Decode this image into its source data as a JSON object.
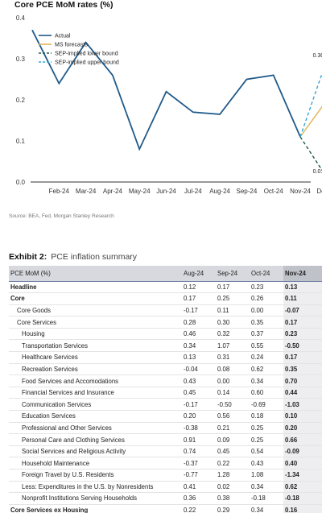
{
  "chart_data": {
    "type": "line",
    "title": "Core PCE MoM rates (%)",
    "categories": [
      "Feb-24",
      "Mar-24",
      "Apr-24",
      "May-24",
      "Jun-24",
      "Jul-24",
      "Aug-24",
      "Sep-24",
      "Oct-24",
      "Nov-24",
      "Dec-24"
    ],
    "ylim": [
      0.0,
      0.4
    ],
    "yticks": [
      "0.0",
      "0.1",
      "0.2",
      "0.3",
      "0.4"
    ],
    "grid": false,
    "legend_position": "top-left",
    "actual_x": [
      "Jan-24",
      "Feb-24",
      "Mar-24",
      "Apr-24",
      "May-24",
      "Jun-24",
      "Jul-24",
      "Aug-24",
      "Sep-24",
      "Oct-24",
      "Nov-24"
    ],
    "series": [
      {
        "name": "Actual",
        "color": "#1f5a8a",
        "style": "solid",
        "x": [
          "Jan-24",
          "Feb-24",
          "Mar-24",
          "Apr-24",
          "May-24",
          "Jun-24",
          "Jul-24",
          "Aug-24",
          "Sep-24",
          "Oct-24",
          "Nov-24"
        ],
        "values": [
          0.37,
          0.24,
          0.34,
          0.26,
          0.08,
          0.22,
          0.17,
          0.165,
          0.25,
          0.26,
          0.11
        ]
      },
      {
        "name": "MS forecasts",
        "color": "#e0b455",
        "style": "solid",
        "x": [
          "Nov-24",
          "Dec-24"
        ],
        "values": [
          0.11,
          0.2
        ]
      },
      {
        "name": "SEP-implied  lower bound",
        "color": "#1d5a4a",
        "style": "dashed",
        "x": [
          "Nov-24",
          "Dec-24"
        ],
        "values": [
          0.11,
          0.01
        ]
      },
      {
        "name": "SEP-implied upper bound",
        "color": "#34a6d6",
        "style": "dashed",
        "x": [
          "Nov-24",
          "Dec-24"
        ],
        "values": [
          0.11,
          0.3
        ]
      }
    ],
    "annotations": [
      {
        "x": "Dec-24",
        "y": 0.3,
        "text": "0.30"
      },
      {
        "x": "Dec-24",
        "y": 0.01,
        "text": "0.01"
      }
    ]
  },
  "source": "Source: BEA, Fed, Morgan Stanley Research",
  "exhibit": {
    "label": "Exhibit 2:",
    "title": "PCE inflation summary",
    "columns": [
      "PCE MoM (%)",
      "Aug-24",
      "Sep-24",
      "Oct-24",
      "Nov-24"
    ],
    "rows": [
      {
        "label": "Headline",
        "level": 0,
        "values": [
          "0.12",
          "0.17",
          "0.23",
          "0.13"
        ]
      },
      {
        "label": "Core",
        "level": 0,
        "values": [
          "0.17",
          "0.25",
          "0.26",
          "0.11"
        ]
      },
      {
        "label": "Core Goods",
        "level": 1,
        "values": [
          "-0.17",
          "0.11",
          "0.00",
          "-0.07"
        ]
      },
      {
        "label": "Core Services",
        "level": 1,
        "values": [
          "0.28",
          "0.30",
          "0.35",
          "0.17"
        ]
      },
      {
        "label": "Housing",
        "level": 2,
        "values": [
          "0.46",
          "0.32",
          "0.37",
          "0.23"
        ]
      },
      {
        "label": "Transportation Services",
        "level": 2,
        "values": [
          "0.34",
          "1.07",
          "0.55",
          "-0.50"
        ]
      },
      {
        "label": "Healthcare Services",
        "level": 2,
        "values": [
          "0.13",
          "0.31",
          "0.24",
          "0.17"
        ]
      },
      {
        "label": "Recreation Services",
        "level": 2,
        "values": [
          "-0.04",
          "0.08",
          "0.62",
          "0.35"
        ]
      },
      {
        "label": "Food Services and Accomodations",
        "level": 2,
        "values": [
          "0.43",
          "0.00",
          "0.34",
          "0.70"
        ]
      },
      {
        "label": "Financial Services and Insurance",
        "level": 2,
        "values": [
          "0.45",
          "0.14",
          "0.60",
          "0.44"
        ]
      },
      {
        "label": "Communication Services",
        "level": 2,
        "values": [
          "-0.17",
          "-0.50",
          "-0.69",
          "-1.03"
        ]
      },
      {
        "label": "Education Services",
        "level": 2,
        "values": [
          "0.20",
          "0.56",
          "0.18",
          "0.10"
        ]
      },
      {
        "label": "Professional and Other Services",
        "level": 2,
        "values": [
          "-0.38",
          "0.21",
          "0.25",
          "0.20"
        ]
      },
      {
        "label": "Personal Care and Clothing Services",
        "level": 2,
        "values": [
          "0.91",
          "0.09",
          "0.25",
          "0.66"
        ]
      },
      {
        "label": "Social Services and Religious Activity",
        "level": 2,
        "values": [
          "0.74",
          "0.45",
          "0.54",
          "-0.09"
        ]
      },
      {
        "label": "Household Maintenance",
        "level": 2,
        "values": [
          "-0.37",
          "0.22",
          "0.43",
          "0.40"
        ]
      },
      {
        "label": "Foreign Travel by U.S. Residents",
        "level": 2,
        "values": [
          "-0.77",
          "1.28",
          "1.08",
          "-1.34"
        ]
      },
      {
        "label": "Less: Expenditures in the U.S. by Nonresidents",
        "level": 2,
        "values": [
          "0.41",
          "0.02",
          "0.34",
          "0.62"
        ]
      },
      {
        "label": "Nonprofit Institutions Serving Households",
        "level": 2,
        "values": [
          "0.36",
          "0.38",
          "-0.18",
          "-0.18"
        ]
      },
      {
        "label": "Core Services ex Housing",
        "level": 0,
        "values": [
          "0.22",
          "0.29",
          "0.34",
          "0.16"
        ]
      }
    ]
  }
}
